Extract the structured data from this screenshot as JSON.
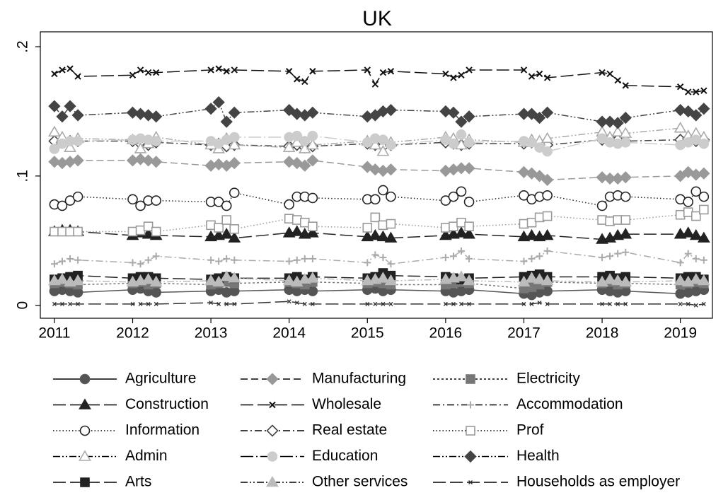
{
  "chart_data": {
    "type": "line",
    "title": "UK",
    "x": [
      2011,
      2011.1,
      2011.2,
      2011.3,
      2012,
      2012.1,
      2012.2,
      2012.3,
      2013,
      2013.1,
      2013.2,
      2013.3,
      2014,
      2014.1,
      2014.2,
      2014.3,
      2015,
      2015.1,
      2015.2,
      2015.3,
      2016,
      2016.1,
      2016.2,
      2016.3,
      2017,
      2017.1,
      2017.2,
      2017.3,
      2018,
      2018.1,
      2018.2,
      2018.3,
      2019,
      2019.1,
      2019.2,
      2019.3
    ],
    "xlim": [
      2010.82,
      2019.41
    ],
    "xticks": [
      2011,
      2012,
      2013,
      2014,
      2015,
      2016,
      2017,
      2018,
      2019
    ],
    "ylim": [
      -0.01,
      0.2115
    ],
    "yticks": [
      0,
      {
        "value": 0.1,
        "label": ".1"
      },
      {
        "value": 0.2,
        "label": ".2"
      }
    ],
    "series": [
      {
        "name": "Agriculture",
        "color": "#555555",
        "marker": "circle",
        "filled": true,
        "line_style": "solid",
        "values": [
          0.011,
          0.012,
          0.011,
          0.01,
          0.012,
          0.013,
          0.011,
          0.01,
          0.011,
          0.012,
          0.01,
          0.011,
          0.012,
          0.011,
          0.012,
          0.011,
          0.012,
          0.013,
          0.011,
          0.012,
          0.011,
          0.01,
          0.011,
          0.012,
          0.009,
          0.008,
          0.01,
          0.011,
          0.012,
          0.011,
          0.01,
          0.011,
          0.009,
          0.01,
          0.011,
          0.012
        ]
      },
      {
        "name": "Manufacturing",
        "color": "#999999",
        "marker": "diamond",
        "filled": true,
        "line_style": "dash",
        "values": [
          0.111,
          0.11,
          0.111,
          0.112,
          0.112,
          0.113,
          0.112,
          0.111,
          0.108,
          0.109,
          0.108,
          0.11,
          0.111,
          0.11,
          0.108,
          0.112,
          0.107,
          0.105,
          0.104,
          0.105,
          0.104,
          0.105,
          0.106,
          0.106,
          0.103,
          0.102,
          0.1,
          0.097,
          0.099,
          0.098,
          0.098,
          0.099,
          0.1,
          0.103,
          0.101,
          0.102
        ]
      },
      {
        "name": "Electricity",
        "color": "#777777",
        "marker": "square",
        "filled": true,
        "line_style": "shortdash",
        "values": [
          0.017,
          0.018,
          0.017,
          0.016,
          0.017,
          0.018,
          0.016,
          0.017,
          0.016,
          0.017,
          0.018,
          0.017,
          0.018,
          0.017,
          0.016,
          0.018,
          0.017,
          0.018,
          0.017,
          0.016,
          0.016,
          0.017,
          0.018,
          0.017,
          0.013,
          0.014,
          0.016,
          0.018,
          0.017,
          0.018,
          0.016,
          0.017,
          0.016,
          0.017,
          0.018,
          0.017
        ]
      },
      {
        "name": "Construction",
        "color": "#222222",
        "marker": "triangle",
        "filled": true,
        "line_style": "longdash",
        "values": [
          0.057,
          0.058,
          0.058,
          0.057,
          0.054,
          0.056,
          0.055,
          0.054,
          0.053,
          0.054,
          0.055,
          0.052,
          0.056,
          0.057,
          0.055,
          0.056,
          0.053,
          0.054,
          0.053,
          0.052,
          0.054,
          0.055,
          0.056,
          0.055,
          0.053,
          0.054,
          0.053,
          0.054,
          0.051,
          0.052,
          0.054,
          0.055,
          0.055,
          0.056,
          0.054,
          0.052
        ]
      },
      {
        "name": "Wholesale",
        "color": "#111111",
        "marker": "x",
        "filled": false,
        "line_style": "longdash",
        "values": [
          0.179,
          0.182,
          0.183,
          0.177,
          0.178,
          0.182,
          0.18,
          0.18,
          0.182,
          0.183,
          0.181,
          0.182,
          0.181,
          0.175,
          0.173,
          0.181,
          0.182,
          0.171,
          0.18,
          0.181,
          0.179,
          0.176,
          0.178,
          0.182,
          0.182,
          0.177,
          0.179,
          0.176,
          0.18,
          0.179,
          0.174,
          0.17,
          0.169,
          0.165,
          0.165,
          0.166
        ]
      },
      {
        "name": "Accommodation",
        "color": "#aaaaaa",
        "marker": "plus",
        "filled": false,
        "line_style": "dashdot",
        "values": [
          0.032,
          0.034,
          0.036,
          0.035,
          0.033,
          0.032,
          0.035,
          0.038,
          0.035,
          0.034,
          0.036,
          0.035,
          0.034,
          0.035,
          0.036,
          0.036,
          0.033,
          0.039,
          0.037,
          0.032,
          0.037,
          0.038,
          0.042,
          0.036,
          0.034,
          0.036,
          0.038,
          0.042,
          0.037,
          0.038,
          0.04,
          0.041,
          0.033,
          0.04,
          0.036,
          0.035
        ]
      },
      {
        "name": "Information",
        "color": "#222222",
        "marker": "circle",
        "filled": false,
        "line_style": "dot",
        "values": [
          0.078,
          0.077,
          0.081,
          0.084,
          0.082,
          0.077,
          0.081,
          0.081,
          0.08,
          0.08,
          0.077,
          0.087,
          0.078,
          0.084,
          0.084,
          0.083,
          0.082,
          0.082,
          0.089,
          0.084,
          0.081,
          0.084,
          0.088,
          0.08,
          0.085,
          0.082,
          0.084,
          0.085,
          0.077,
          0.084,
          0.085,
          0.084,
          0.082,
          0.08,
          0.088,
          0.084
        ]
      },
      {
        "name": "Real estate",
        "color": "#444444",
        "marker": "diamond",
        "filled": false,
        "line_style": "dashdot",
        "values": [
          0.127,
          0.126,
          0.127,
          0.127,
          0.127,
          0.125,
          0.124,
          0.126,
          0.124,
          0.125,
          0.123,
          0.124,
          0.123,
          0.124,
          0.122,
          0.123,
          0.125,
          0.124,
          0.123,
          0.124,
          0.126,
          0.125,
          0.124,
          0.125,
          0.125,
          0.126,
          0.125,
          0.124,
          0.128,
          0.129,
          0.128,
          0.127,
          0.128,
          0.129,
          0.127,
          0.128
        ]
      },
      {
        "name": "Prof",
        "color": "#999999",
        "marker": "square",
        "filled": false,
        "line_style": "dot",
        "values": [
          0.057,
          0.057,
          0.057,
          0.057,
          0.057,
          0.058,
          0.061,
          0.057,
          0.062,
          0.06,
          0.066,
          0.059,
          0.067,
          0.066,
          0.064,
          0.061,
          0.06,
          0.068,
          0.062,
          0.063,
          0.06,
          0.061,
          0.064,
          0.061,
          0.063,
          0.064,
          0.068,
          0.069,
          0.066,
          0.065,
          0.066,
          0.066,
          0.07,
          0.072,
          0.069,
          0.074
        ]
      },
      {
        "name": "Admin",
        "color": "#aaaaaa",
        "marker": "triangle",
        "filled": false,
        "line_style": "dashdotdot",
        "values": [
          0.134,
          0.13,
          0.122,
          0.129,
          0.128,
          0.121,
          0.125,
          0.13,
          0.124,
          0.121,
          0.129,
          0.124,
          0.122,
          0.126,
          0.121,
          0.124,
          0.127,
          0.124,
          0.119,
          0.126,
          0.13,
          0.129,
          0.124,
          0.128,
          0.126,
          0.128,
          0.127,
          0.129,
          0.134,
          0.13,
          0.134,
          0.133,
          0.137,
          0.131,
          0.133,
          0.13
        ]
      },
      {
        "name": "Education",
        "color": "#cccccc",
        "marker": "circle",
        "filled": true,
        "line_style": "longdashdot",
        "values": [
          0.121,
          0.125,
          0.127,
          0.127,
          0.128,
          0.129,
          0.128,
          0.127,
          0.127,
          0.125,
          0.128,
          0.13,
          0.13,
          0.131,
          0.127,
          0.131,
          0.126,
          0.129,
          0.128,
          0.124,
          0.128,
          0.125,
          0.132,
          0.126,
          0.127,
          0.126,
          0.122,
          0.119,
          0.129,
          0.126,
          0.125,
          0.126,
          0.124,
          0.126,
          0.128,
          0.125
        ]
      },
      {
        "name": "Health",
        "color": "#444444",
        "marker": "diamond",
        "filled": true,
        "line_style": "dashdotdot",
        "values": [
          0.154,
          0.146,
          0.154,
          0.147,
          0.149,
          0.148,
          0.147,
          0.146,
          0.152,
          0.157,
          0.142,
          0.149,
          0.151,
          0.148,
          0.147,
          0.149,
          0.146,
          0.147,
          0.15,
          0.151,
          0.15,
          0.149,
          0.142,
          0.146,
          0.148,
          0.148,
          0.145,
          0.149,
          0.142,
          0.142,
          0.141,
          0.145,
          0.151,
          0.15,
          0.147,
          0.152
        ]
      },
      {
        "name": "Arts",
        "color": "#222222",
        "marker": "square",
        "filled": true,
        "line_style": "longdash",
        "values": [
          0.02,
          0.021,
          0.022,
          0.023,
          0.021,
          0.022,
          0.022,
          0.021,
          0.02,
          0.021,
          0.022,
          0.021,
          0.021,
          0.022,
          0.02,
          0.022,
          0.021,
          0.022,
          0.025,
          0.023,
          0.022,
          0.021,
          0.02,
          0.021,
          0.022,
          0.023,
          0.024,
          0.022,
          0.022,
          0.023,
          0.021,
          0.022,
          0.021,
          0.022,
          0.022,
          0.02
        ]
      },
      {
        "name": "Other services",
        "color": "#bbbbbb",
        "marker": "triangle",
        "filled": true,
        "line_style": "dashdotdot",
        "values": [
          0.019,
          0.02,
          0.018,
          0.019,
          0.018,
          0.019,
          0.02,
          0.018,
          0.019,
          0.018,
          0.022,
          0.021,
          0.019,
          0.018,
          0.02,
          0.021,
          0.019,
          0.02,
          0.021,
          0.019,
          0.02,
          0.021,
          0.022,
          0.019,
          0.018,
          0.021,
          0.02,
          0.019,
          0.018,
          0.02,
          0.019,
          0.018,
          0.019,
          0.018,
          0.02,
          0.019
        ]
      },
      {
        "name": "Households as employer",
        "color": "#333333",
        "marker": "smallx",
        "filled": false,
        "line_style": "longdash",
        "values": [
          0.001,
          0.001,
          0.001,
          0.001,
          0.001,
          0.001,
          0.001,
          0.001,
          0.002,
          0.001,
          0.001,
          0.001,
          0.003,
          0.002,
          0.001,
          0.001,
          0.001,
          0.001,
          0.001,
          0.001,
          0.001,
          0.001,
          0.001,
          0.001,
          0.001,
          0.001,
          0.002,
          0.001,
          0.001,
          0.001,
          0.001,
          0.001,
          0.001,
          0.001,
          0.0,
          0.001
        ]
      }
    ]
  }
}
